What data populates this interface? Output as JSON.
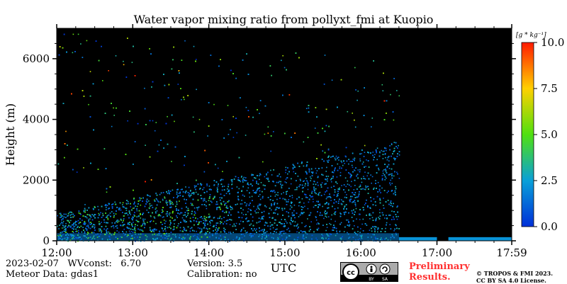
{
  "chart_data": {
    "type": "heatmap",
    "title": "Water vapor mixing ratio from pollyxt_fmi at Kuopio",
    "xlabel": "UTC",
    "ylabel": "Height (m)",
    "x_ticks": [
      "12:00",
      "13:00",
      "14:00",
      "15:00",
      "16:00",
      "17:00",
      "17:59"
    ],
    "x_range_hours": [
      12.0,
      17.983
    ],
    "y_ticks": [
      0,
      2000,
      4000,
      6000
    ],
    "y_range": [
      0,
      7000
    ],
    "colorbar": {
      "label": "[g * kg⁻¹]",
      "ticks": [
        "0.0",
        "2.5",
        "5.0",
        "7.5",
        "10.0"
      ],
      "range": [
        0,
        10
      ],
      "colormap": "jet"
    },
    "background_color": "#000000",
    "features": {
      "surface_layer_top_m": 350,
      "boundary_layer_top_m": 2500,
      "data_end_utc_hours": 16.5,
      "gap_start_utc_hours": 17.0,
      "gap_end_utc_hours": 17.15
    }
  },
  "footer": {
    "date": "2023-02-07",
    "wvconst": "WVconst:   6.70",
    "meteor": "Meteor Data: gdas1",
    "version": "Version: 3.5",
    "calibration": "Calibration: no",
    "preliminary_line1": "Preliminary",
    "preliminary_line2": "Results.",
    "copyright_line1": "© TROPOS & FMI 2023.",
    "copyright_line2": "CC BY SA 4.0 License.",
    "license_badge": {
      "cc": "cc",
      "by": "BY",
      "sa": "SA"
    }
  }
}
